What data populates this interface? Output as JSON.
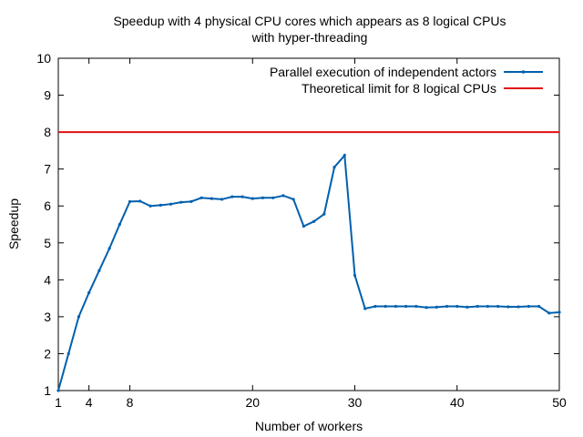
{
  "chart_data": {
    "type": "line",
    "title_line1": "Speedup with 4 physical CPU cores which appears as 8 logical CPUs",
    "title_line2": "with hyper-threading",
    "xlabel": "Number of workers",
    "ylabel": "Speedup",
    "xlim": [
      1,
      50
    ],
    "ylim": [
      1,
      10
    ],
    "x_ticks": [
      1,
      4,
      8,
      20,
      30,
      40,
      50
    ],
    "y_ticks": [
      1,
      2,
      3,
      4,
      5,
      6,
      7,
      8,
      9,
      10
    ],
    "grid": false,
    "legend_position": "top-right",
    "series": [
      {
        "name": "Parallel execution of independent actors",
        "color": "#0060ad",
        "marker": "dot",
        "x": [
          1,
          2,
          3,
          4,
          5,
          6,
          7,
          8,
          9,
          10,
          11,
          12,
          13,
          14,
          15,
          16,
          17,
          18,
          19,
          20,
          21,
          22,
          23,
          24,
          25,
          26,
          27,
          28,
          29,
          30,
          31,
          32,
          33,
          34,
          35,
          36,
          37,
          38,
          39,
          40,
          41,
          42,
          43,
          44,
          45,
          46,
          47,
          48,
          49,
          50
        ],
        "y": [
          1.0,
          2.0,
          3.0,
          3.65,
          4.25,
          4.85,
          5.5,
          6.12,
          6.13,
          6.0,
          6.02,
          6.05,
          6.1,
          6.12,
          6.22,
          6.2,
          6.18,
          6.25,
          6.25,
          6.2,
          6.22,
          6.22,
          6.28,
          6.18,
          5.45,
          5.58,
          5.78,
          7.05,
          7.37,
          4.12,
          3.22,
          3.28,
          3.28,
          3.28,
          3.28,
          3.28,
          3.25,
          3.26,
          3.28,
          3.28,
          3.26,
          3.28,
          3.28,
          3.28,
          3.27,
          3.27,
          3.28,
          3.28,
          3.1,
          3.12
        ]
      },
      {
        "name": "Theoretical limit for 8 logical CPUs",
        "color": "#e01010",
        "marker": "none",
        "x": [
          1,
          50
        ],
        "y": [
          8,
          8
        ]
      }
    ]
  }
}
